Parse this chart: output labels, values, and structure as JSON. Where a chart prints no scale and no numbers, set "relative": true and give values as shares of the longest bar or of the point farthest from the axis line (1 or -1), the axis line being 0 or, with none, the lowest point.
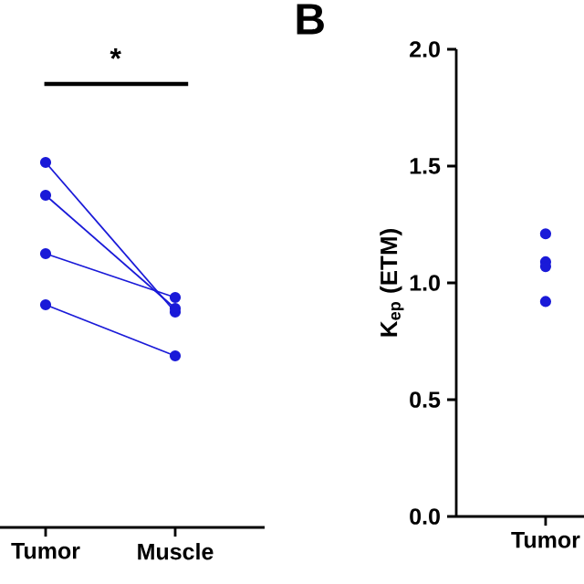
{
  "chart_data": [
    {
      "type": "line",
      "relative": true,
      "categories": [
        "Tumor",
        "Muscle"
      ],
      "marker": "circle",
      "annotations": [
        "*"
      ],
      "series": [
        {
          "color": "#1a1ad8",
          "values": [
            1,
            0.59
          ]
        },
        {
          "color": "#1a1ad8",
          "values": [
            0.91,
            0.6
          ]
        },
        {
          "color": "#1a1ad8",
          "values": [
            0.75,
            0.63
          ]
        },
        {
          "color": "#1a1ad8",
          "values": [
            0.61,
            0.47
          ]
        }
      ]
    },
    {
      "type": "line",
      "title": "B",
      "ylabel": "K$_{ep}$ (ETM)",
      "categories": [
        "Tumor"
      ],
      "marker": "circle",
      "ylim": [
        0,
        2
      ],
      "yticks": [
        {
          "value": 0,
          "label": "0.0"
        },
        0.5,
        {
          "value": 1,
          "label": "1.0"
        },
        1.5,
        {
          "value": 2,
          "label": "2.0"
        }
      ],
      "series": [
        {
          "color": "#1a1ad8",
          "values": [
            1.21
          ]
        },
        {
          "color": "#1a1ad8",
          "values": [
            1.09
          ]
        },
        {
          "color": "#1a1ad8",
          "values": [
            1.07
          ]
        },
        {
          "color": "#1a1ad8",
          "values": [
            0.92
          ]
        }
      ]
    }
  ]
}
